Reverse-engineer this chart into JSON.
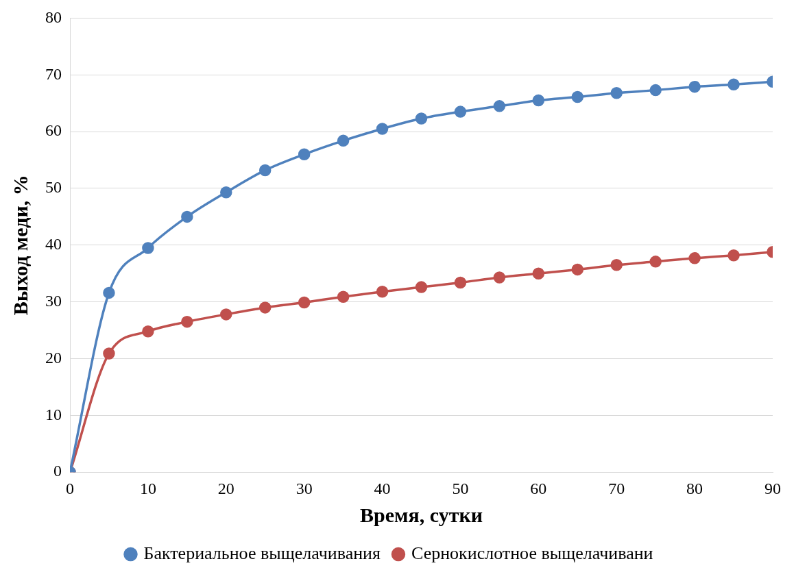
{
  "chart_data": {
    "type": "line",
    "xlabel": "Время, сутки",
    "ylabel": "Выход меди, %",
    "x": [
      0,
      5,
      10,
      15,
      20,
      25,
      30,
      35,
      40,
      45,
      50,
      55,
      60,
      65,
      70,
      75,
      80,
      85,
      90
    ],
    "series": [
      {
        "name": "Бактериальное выщелачивания",
        "color": "#4f81bd",
        "values": [
          0,
          31.6,
          39.5,
          45.0,
          49.3,
          53.2,
          56.0,
          58.4,
          60.5,
          62.3,
          63.5,
          64.5,
          65.5,
          66.1,
          66.8,
          67.3,
          67.9,
          68.3,
          68.8
        ]
      },
      {
        "name": "Сернокислотное выщелачивани",
        "color": "#c0504d",
        "values": [
          0,
          20.9,
          24.8,
          26.5,
          27.8,
          29.0,
          29.9,
          30.9,
          31.8,
          32.6,
          33.4,
          34.3,
          35.0,
          35.7,
          36.5,
          37.1,
          37.7,
          38.2,
          38.8
        ]
      }
    ],
    "xlim": [
      0,
      90
    ],
    "xticks": [
      0,
      10,
      20,
      30,
      40,
      50,
      60,
      70,
      80,
      90
    ],
    "ylim": [
      0,
      80
    ],
    "yticks": [
      0,
      10,
      20,
      30,
      40,
      50,
      60,
      70,
      80
    ],
    "grid": "y",
    "legend": "bottom",
    "marker": "circle",
    "line_style": "solid"
  }
}
